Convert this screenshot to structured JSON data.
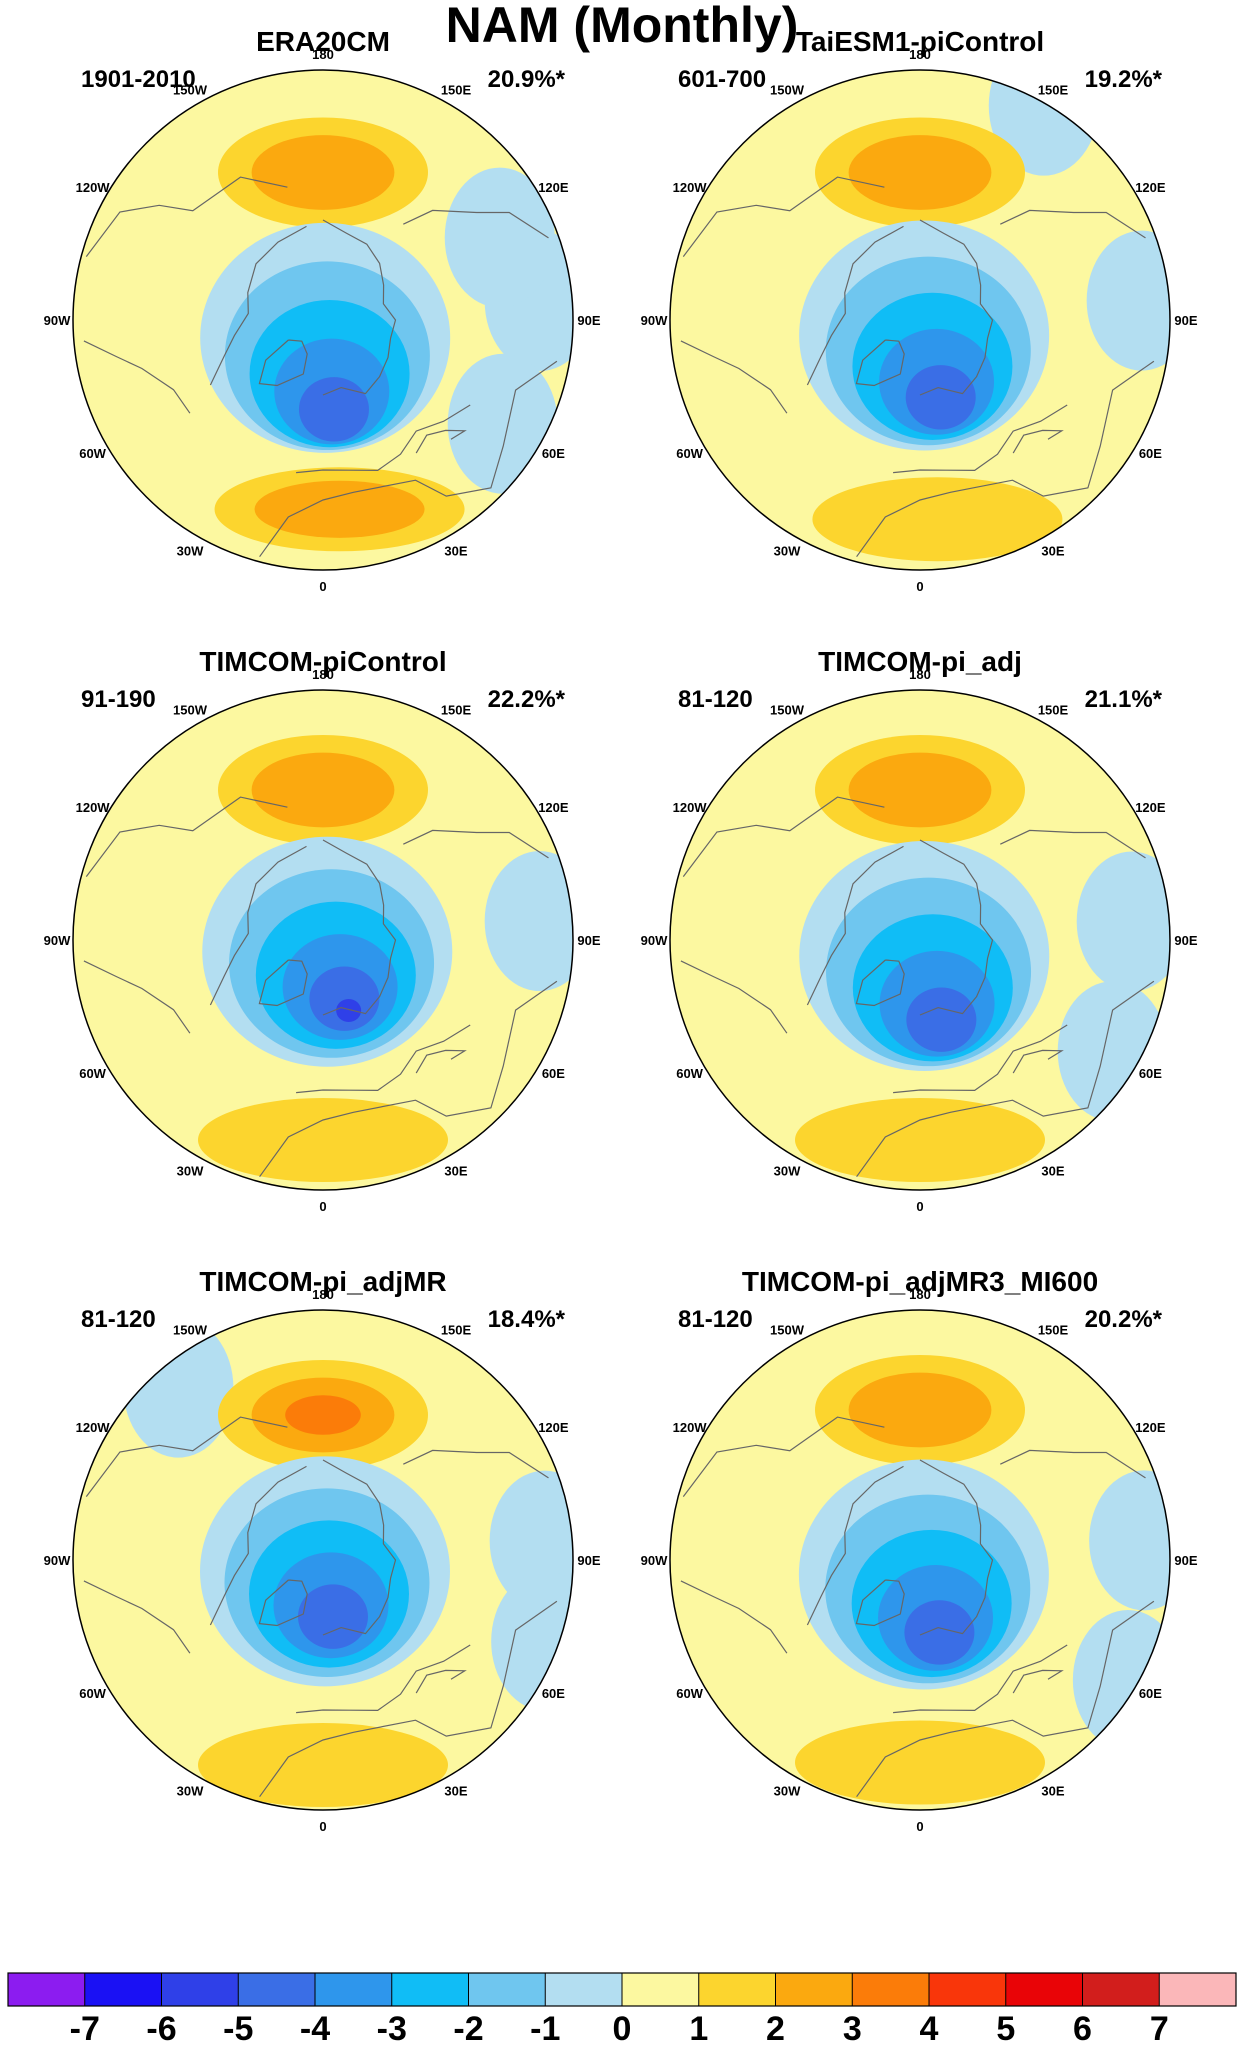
{
  "title": "NAM (Monthly)",
  "panels": [
    {
      "title": "ERA20CM",
      "period": "1901-2010",
      "variance": "20.9%*",
      "lows": [
        {
          "a": 7,
          "r": 3.6,
          "v": -5
        }
      ],
      "highs": [
        {
          "a": 180,
          "r": 5.9,
          "v": 3
        },
        {
          "a": 5,
          "r": 7.6,
          "v": 3
        }
      ],
      "bluePatches": [
        {
          "a": 95,
          "r": 8.7
        },
        {
          "a": 115,
          "r": 7.8
        },
        {
          "a": 60,
          "r": 8.3
        }
      ]
    },
    {
      "title": "TaiESM1-piControl",
      "period": "601-700",
      "variance": "19.2%*",
      "lows": [
        {
          "a": 15,
          "r": 3.2,
          "v": -5
        }
      ],
      "highs": [
        {
          "a": 180,
          "r": 5.9,
          "v": 3
        },
        {
          "a": 5,
          "r": 8.0,
          "v": 2
        }
      ],
      "bluePatches": [
        {
          "a": 95,
          "r": 8.9
        },
        {
          "a": 150,
          "r": 9.9
        }
      ]
    },
    {
      "title": "TIMCOM-piControl",
      "period": "91-190",
      "variance": "22.2%*",
      "lows": [
        {
          "a": 20,
          "r": 3.0,
          "v": -6
        }
      ],
      "highs": [
        {
          "a": 180,
          "r": 6.0,
          "v": 3
        },
        {
          "a": 0,
          "r": 8.0,
          "v": 2
        }
      ],
      "bluePatches": [
        {
          "a": 95,
          "r": 8.7
        }
      ]
    },
    {
      "title": "TIMCOM-pi_adj",
      "period": "81-120",
      "variance": "21.1%*",
      "lows": [
        {
          "a": 15,
          "r": 3.3,
          "v": -5
        }
      ],
      "highs": [
        {
          "a": 180,
          "r": 6.0,
          "v": 3
        },
        {
          "a": 0,
          "r": 8.0,
          "v": 2
        }
      ],
      "bluePatches": [
        {
          "a": 95,
          "r": 8.5
        },
        {
          "a": 60,
          "r": 8.9
        }
      ]
    },
    {
      "title": "TIMCOM-pi_adjMR",
      "period": "81-120",
      "variance": "18.4%*",
      "lows": [
        {
          "a": 10,
          "r": 2.3,
          "v": -5
        }
      ],
      "highs": [
        {
          "a": 180,
          "r": 5.8,
          "v": 4
        },
        {
          "a": 0,
          "r": 8.2,
          "v": 2
        }
      ],
      "bluePatches": [
        {
          "a": 95,
          "r": 8.9
        },
        {
          "a": 70,
          "r": 9.5
        },
        {
          "a": 220,
          "r": 9.0
        }
      ]
    },
    {
      "title": "TIMCOM-pi_adjMR3_MI600",
      "period": "81-120",
      "variance": "20.2%*",
      "lows": [
        {
          "a": 15,
          "r": 3.0,
          "v": -5
        }
      ],
      "highs": [
        {
          "a": 180,
          "r": 6.0,
          "v": 3
        },
        {
          "a": 0,
          "r": 8.1,
          "v": 2
        }
      ],
      "bluePatches": [
        {
          "a": 95,
          "r": 9.0
        },
        {
          "a": 60,
          "r": 9.6
        }
      ]
    }
  ],
  "longitude_labels": [
    "180",
    "150E",
    "120E",
    "90E",
    "60E",
    "30E",
    "0",
    "30W",
    "60W",
    "90W",
    "120W",
    "150W"
  ],
  "colorbar": {
    "levels": [
      -7,
      -6,
      -5,
      -4,
      -3,
      -2,
      -1,
      0,
      1,
      2,
      3,
      4,
      5,
      6,
      7
    ],
    "tick_labels": [
      "-7",
      "-6",
      "-5",
      "-4",
      "-3",
      "-2",
      "-1",
      "0",
      "1",
      "2",
      "3",
      "4",
      "5",
      "6",
      "7"
    ],
    "colors": [
      "#8c1cf0",
      "#1a11f4",
      "#2f40e8",
      "#3a6ee6",
      "#2e96ec",
      "#10bdf6",
      "#6fc6ef",
      "#b3def1",
      "#fcf8a0",
      "#fcd52e",
      "#fba90f",
      "#fb7c09",
      "#f9360a",
      "#e90407",
      "#d21e1c",
      "#fbb7b9"
    ]
  }
}
